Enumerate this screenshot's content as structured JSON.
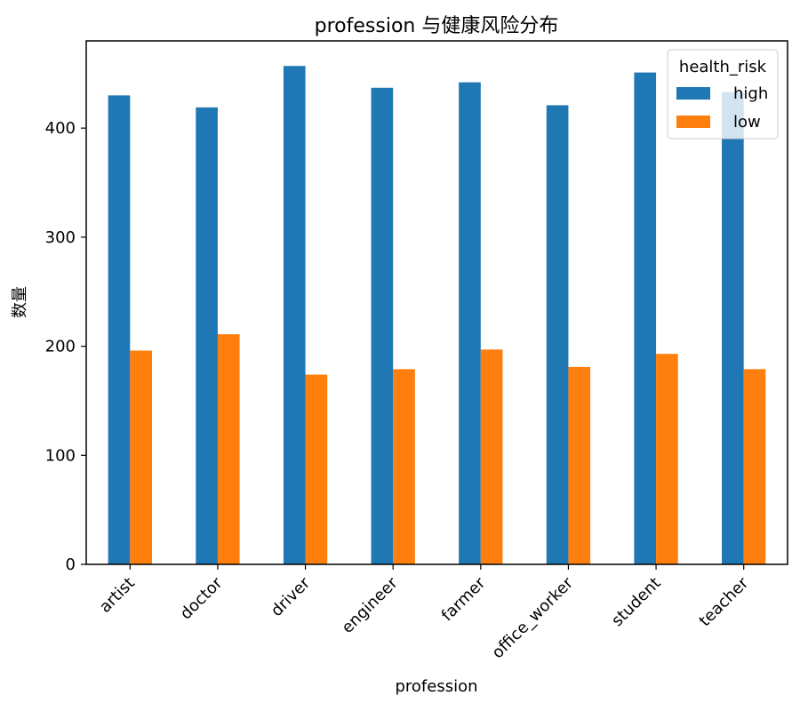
{
  "chart_data": {
    "type": "bar",
    "title": "profession 与健康风险分布",
    "xlabel": "profession",
    "ylabel": "数量",
    "categories": [
      "artist",
      "doctor",
      "driver",
      "engineer",
      "farmer",
      "office_worker",
      "student",
      "teacher"
    ],
    "series": [
      {
        "name": "high",
        "color": "#1f77b4",
        "values": [
          430,
          419,
          457,
          437,
          442,
          421,
          451,
          433
        ]
      },
      {
        "name": "low",
        "color": "#ff7f0e",
        "values": [
          196,
          211,
          174,
          179,
          197,
          181,
          193,
          179
        ]
      }
    ],
    "ylim": [
      0,
      480
    ],
    "yticks": [
      0,
      100,
      200,
      300,
      400
    ],
    "grid": false,
    "legend": {
      "title": "health_risk",
      "placement": "top-right"
    }
  }
}
